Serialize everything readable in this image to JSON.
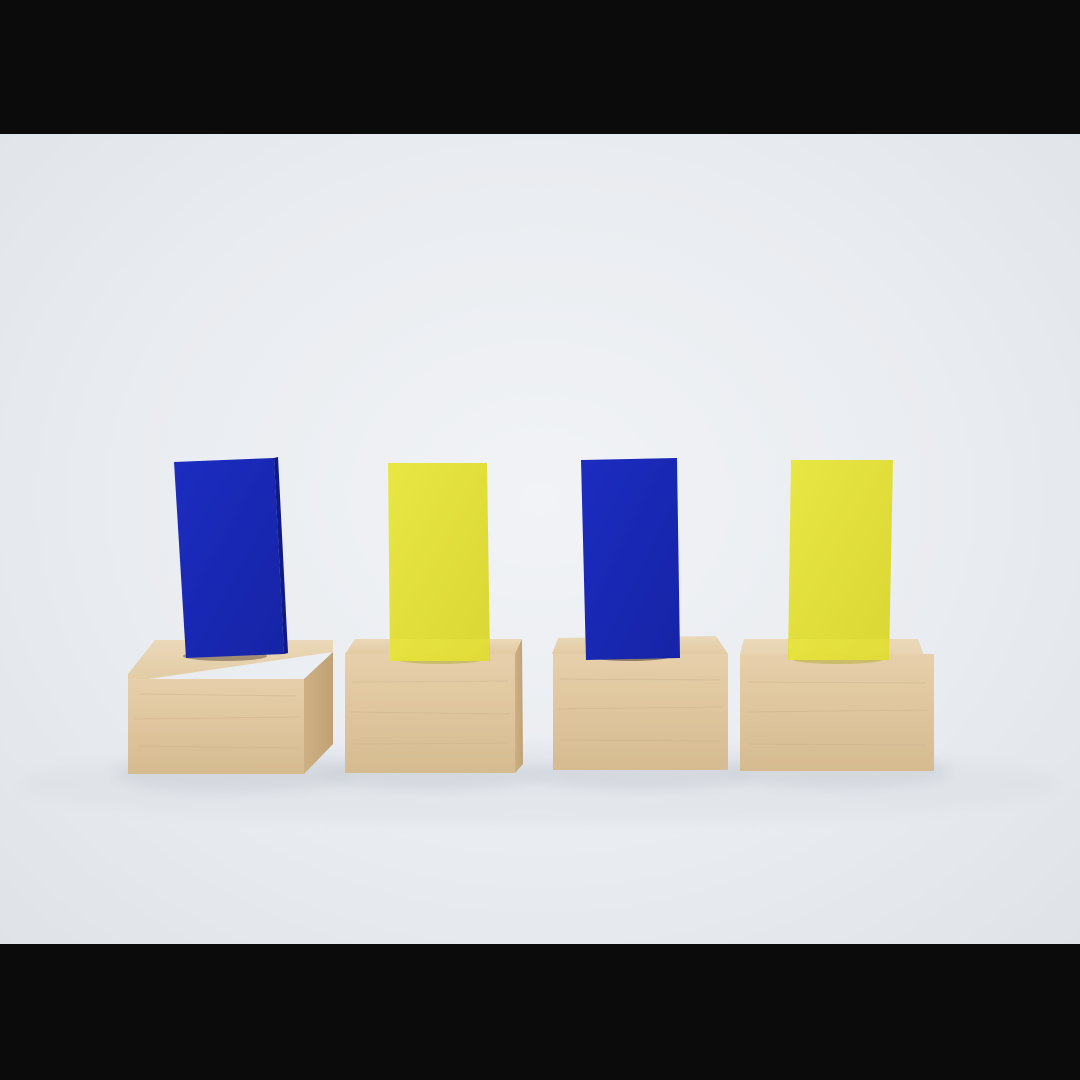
{
  "scene": {
    "subject": "four-acrylic-tiles-on-wooden-blocks",
    "background_color": "#e9ecf0",
    "letterbox_color": "#0b0b0b",
    "tiles": [
      {
        "color_name": "blue",
        "color": "#1b2ab8"
      },
      {
        "color_name": "yellow",
        "color": "#e3e033"
      },
      {
        "color_name": "blue",
        "color": "#1b2ab8"
      },
      {
        "color_name": "yellow",
        "color": "#e3e033"
      }
    ],
    "wood_color": "#dcc39b"
  }
}
